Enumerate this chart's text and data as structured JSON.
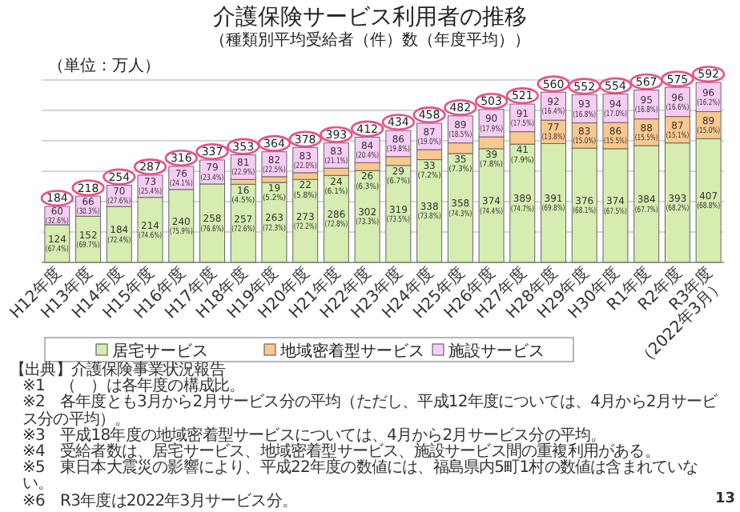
{
  "chart_data": {
    "type": "bar",
    "stacked": true,
    "title": "介護保険サービス利用者の推移",
    "subtitle": "（種類別平均受給者（件）数（年度平均））",
    "ylabel": "（単位：万人）",
    "categories": [
      "H12年度",
      "H13年度",
      "H14年度",
      "H15年度",
      "H16年度",
      "H17年度",
      "H18年度",
      "H19年度",
      "H20年度",
      "H21年度",
      "H22年度",
      "H23年度",
      "H24年度",
      "H25年度",
      "H26年度",
      "H27年度",
      "H28年度",
      "H29年度",
      "H30年度",
      "R1年度",
      "R2年度",
      "R3年度（2022年3月）"
    ],
    "series": [
      {
        "name": "居宅サービス",
        "color": "#d6ecb0",
        "values": [
          124,
          152,
          184,
          214,
          240,
          258,
          257,
          263,
          273,
          286,
          302,
          319,
          338,
          358,
          374,
          389,
          391,
          376,
          374,
          384,
          393,
          407
        ],
        "value_labels": [
          "124\n(67.4%)",
          "152\n(69.7%)",
          "184\n(72.4%)",
          "214\n(74.6%)",
          "240\n(75.9%)",
          "258\n(76.6%)",
          "257\n(72.6%)",
          "263\n(72.3%)",
          "273\n(72.2%)",
          "286\n(72.8%)",
          "302\n(73.3%)",
          "319\n(73.5%)",
          "338\n(73.8%)",
          "358\n(74.3%)",
          "374\n(74.4%)",
          "389\n(74.7%)",
          "391\n(69.8%)",
          "376\n(68.1%)",
          "374\n(67.5%)",
          "384\n(67.7%)",
          "393\n(68.2%)",
          "407\n(68.8%)"
        ]
      },
      {
        "name": "地域密着型サービス",
        "color": "#f9c88e",
        "values": [
          null,
          null,
          null,
          null,
          null,
          null,
          16,
          19,
          22,
          24,
          26,
          29,
          33,
          35,
          39,
          41,
          77,
          83,
          86,
          88,
          87,
          89
        ],
        "value_labels": [
          null,
          null,
          null,
          null,
          null,
          null,
          "16\n(4.5%)",
          "19\n(5.2%)",
          "22\n(5.8%)",
          "24\n(6.1%)",
          "26\n(6.3%)",
          "29\n(6.7%)",
          "33\n(7.2%)",
          "35\n(7.3%)",
          "39\n(7.8%)",
          "41\n(7.9%)",
          "77\n(13.8%)",
          "83\n(15.0%)",
          "86\n(15.5%)",
          "88\n(15.5%)",
          "87\n(15.1%)",
          "89\n(15.0%)"
        ]
      },
      {
        "name": "施設サービス",
        "color": "#f7cdf5",
        "values": [
          60,
          66,
          70,
          73,
          76,
          79,
          81,
          82,
          83,
          83,
          84,
          86,
          87,
          89,
          90,
          91,
          92,
          93,
          94,
          95,
          96,
          96
        ],
        "value_labels": [
          "60\n(32.6%)",
          "66\n(30.3%)",
          "70\n(27.6%)",
          "73\n(25.4%)",
          "76\n(24.1%)",
          "79\n(23.4%)",
          "81\n(22.9%)",
          "82\n(22.5%)",
          "83\n(22.0%)",
          "83\n(21.1%)",
          "84\n(20.4%)",
          "86\n(19.8%)",
          "87\n(19.0%)",
          "89\n(18.5%)",
          "90\n(17.9%)",
          "91\n(17.5%)",
          "92\n(16.4%)",
          "93\n(16.8%)",
          "94\n(17.0%)",
          "95\n(16.8%)",
          "96\n(16.6%)",
          "96\n(16.2%)"
        ]
      }
    ],
    "totals": [
      "184",
      "218",
      "254",
      "287",
      "316",
      "337",
      "353",
      "364",
      "378",
      "393",
      "412",
      "434",
      "458",
      "482",
      "503",
      "521",
      "560",
      "552",
      "554",
      "567",
      "575",
      "592"
    ],
    "ylim": [
      0,
      600
    ],
    "yticks": [
      {
        "value": 0,
        "label": null
      },
      {
        "value": 100,
        "label": null
      },
      {
        "value": 200,
        "label": null
      },
      {
        "value": 300,
        "label": null
      },
      {
        "value": 400,
        "label": null
      },
      {
        "value": 500,
        "label": null
      },
      {
        "value": 600,
        "label": null
      }
    ],
    "tick_labels": "x",
    "grid": "y",
    "legend": "bottom",
    "annotations": [
      "【出典】介護保険事業状況報告",
      "※1　（　）は各年度の構成比。",
      "※2　各年度とも3月から2月サービス分の平均（ただし、平成12年度については、4月から2月サービス分の平均）。",
      "※3　平成18年度の地域密着型サービスについては、4月から2月サービス分の平均。",
      "※4　受給者数は、居宅サービス、地域密着型サービス、施設サービス間の重複利用がある。",
      "※5　東日本大震災の影響により、平成22年度の数値には、福島県内5町1村の数値は含まれていない。",
      "※6　R3年度は2022年3月サービス分。",
      "13"
    ]
  }
}
